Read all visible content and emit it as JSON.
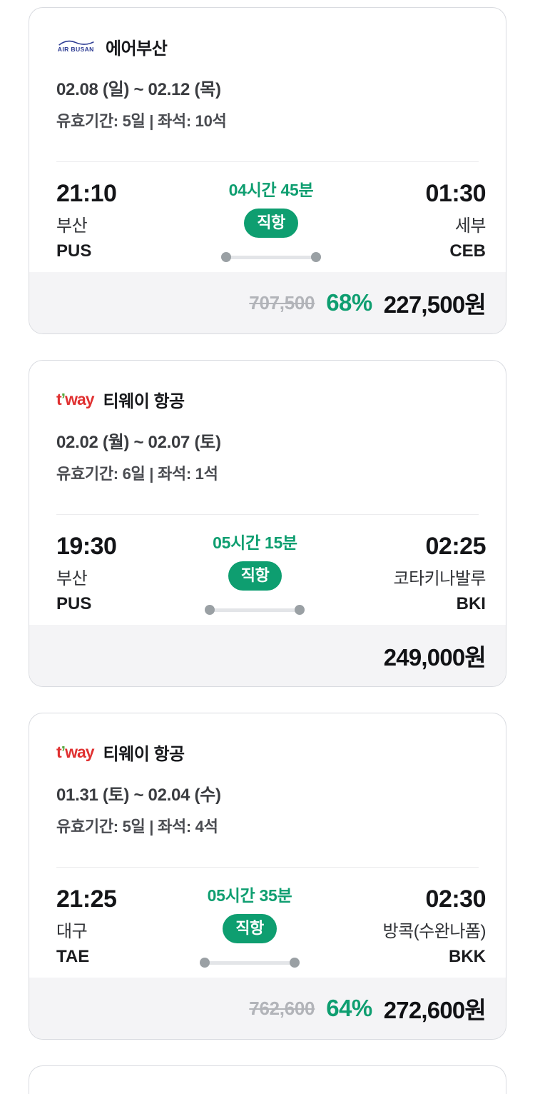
{
  "colors": {
    "accent_green": "#0e9e70",
    "badge_text": "#ffffff",
    "strike_price_gray": "#b2b4b9",
    "price_footer_bg": "#f4f4f6",
    "card_border": "#d9dbe0",
    "airbusan_navy": "#2b3a92",
    "tway_red": "#e03131",
    "tway_apostrophe_green": "#58a83e"
  },
  "cards": [
    {
      "airline": {
        "name": "에어부산",
        "logo": {
          "type": "airbusan",
          "text": "AIR BUSAN"
        }
      },
      "date_range": "02.08 (일) ~ 02.12 (목)",
      "validity": "유효기간: 5일 | 좌석: 10석",
      "departure": {
        "time": "21:10",
        "city": "부산",
        "code": "PUS"
      },
      "duration": "04시간 45분",
      "stops_label": "직항",
      "arrival": {
        "time": "01:30",
        "city": "세부",
        "code": "CEB"
      },
      "price": {
        "original": "707,500",
        "discount": "68%",
        "final": "227,500원"
      }
    },
    {
      "airline": {
        "name": "티웨이 항공",
        "logo": {
          "type": "tway",
          "parts": [
            "t",
            "’",
            "way"
          ]
        }
      },
      "date_range": "02.02 (월) ~ 02.07 (토)",
      "validity": "유효기간: 6일 | 좌석: 1석",
      "departure": {
        "time": "19:30",
        "city": "부산",
        "code": "PUS"
      },
      "duration": "05시간 15분",
      "stops_label": "직항",
      "arrival": {
        "time": "02:25",
        "city": "코타키나발루",
        "code": "BKI"
      },
      "price": {
        "final": "249,000원"
      }
    },
    {
      "airline": {
        "name": "티웨이 항공",
        "logo": {
          "type": "tway",
          "parts": [
            "t",
            "’",
            "way"
          ]
        }
      },
      "date_range": "01.31 (토) ~ 02.04 (수)",
      "validity": "유효기간: 5일 | 좌석: 4석",
      "departure": {
        "time": "21:25",
        "city": "대구",
        "code": "TAE"
      },
      "duration": "05시간 35분",
      "stops_label": "직항",
      "arrival": {
        "time": "02:30",
        "city": "방콕(수완나폼)",
        "code": "BKK"
      },
      "price": {
        "original": "762,600",
        "discount": "64%",
        "final": "272,600원"
      }
    }
  ]
}
